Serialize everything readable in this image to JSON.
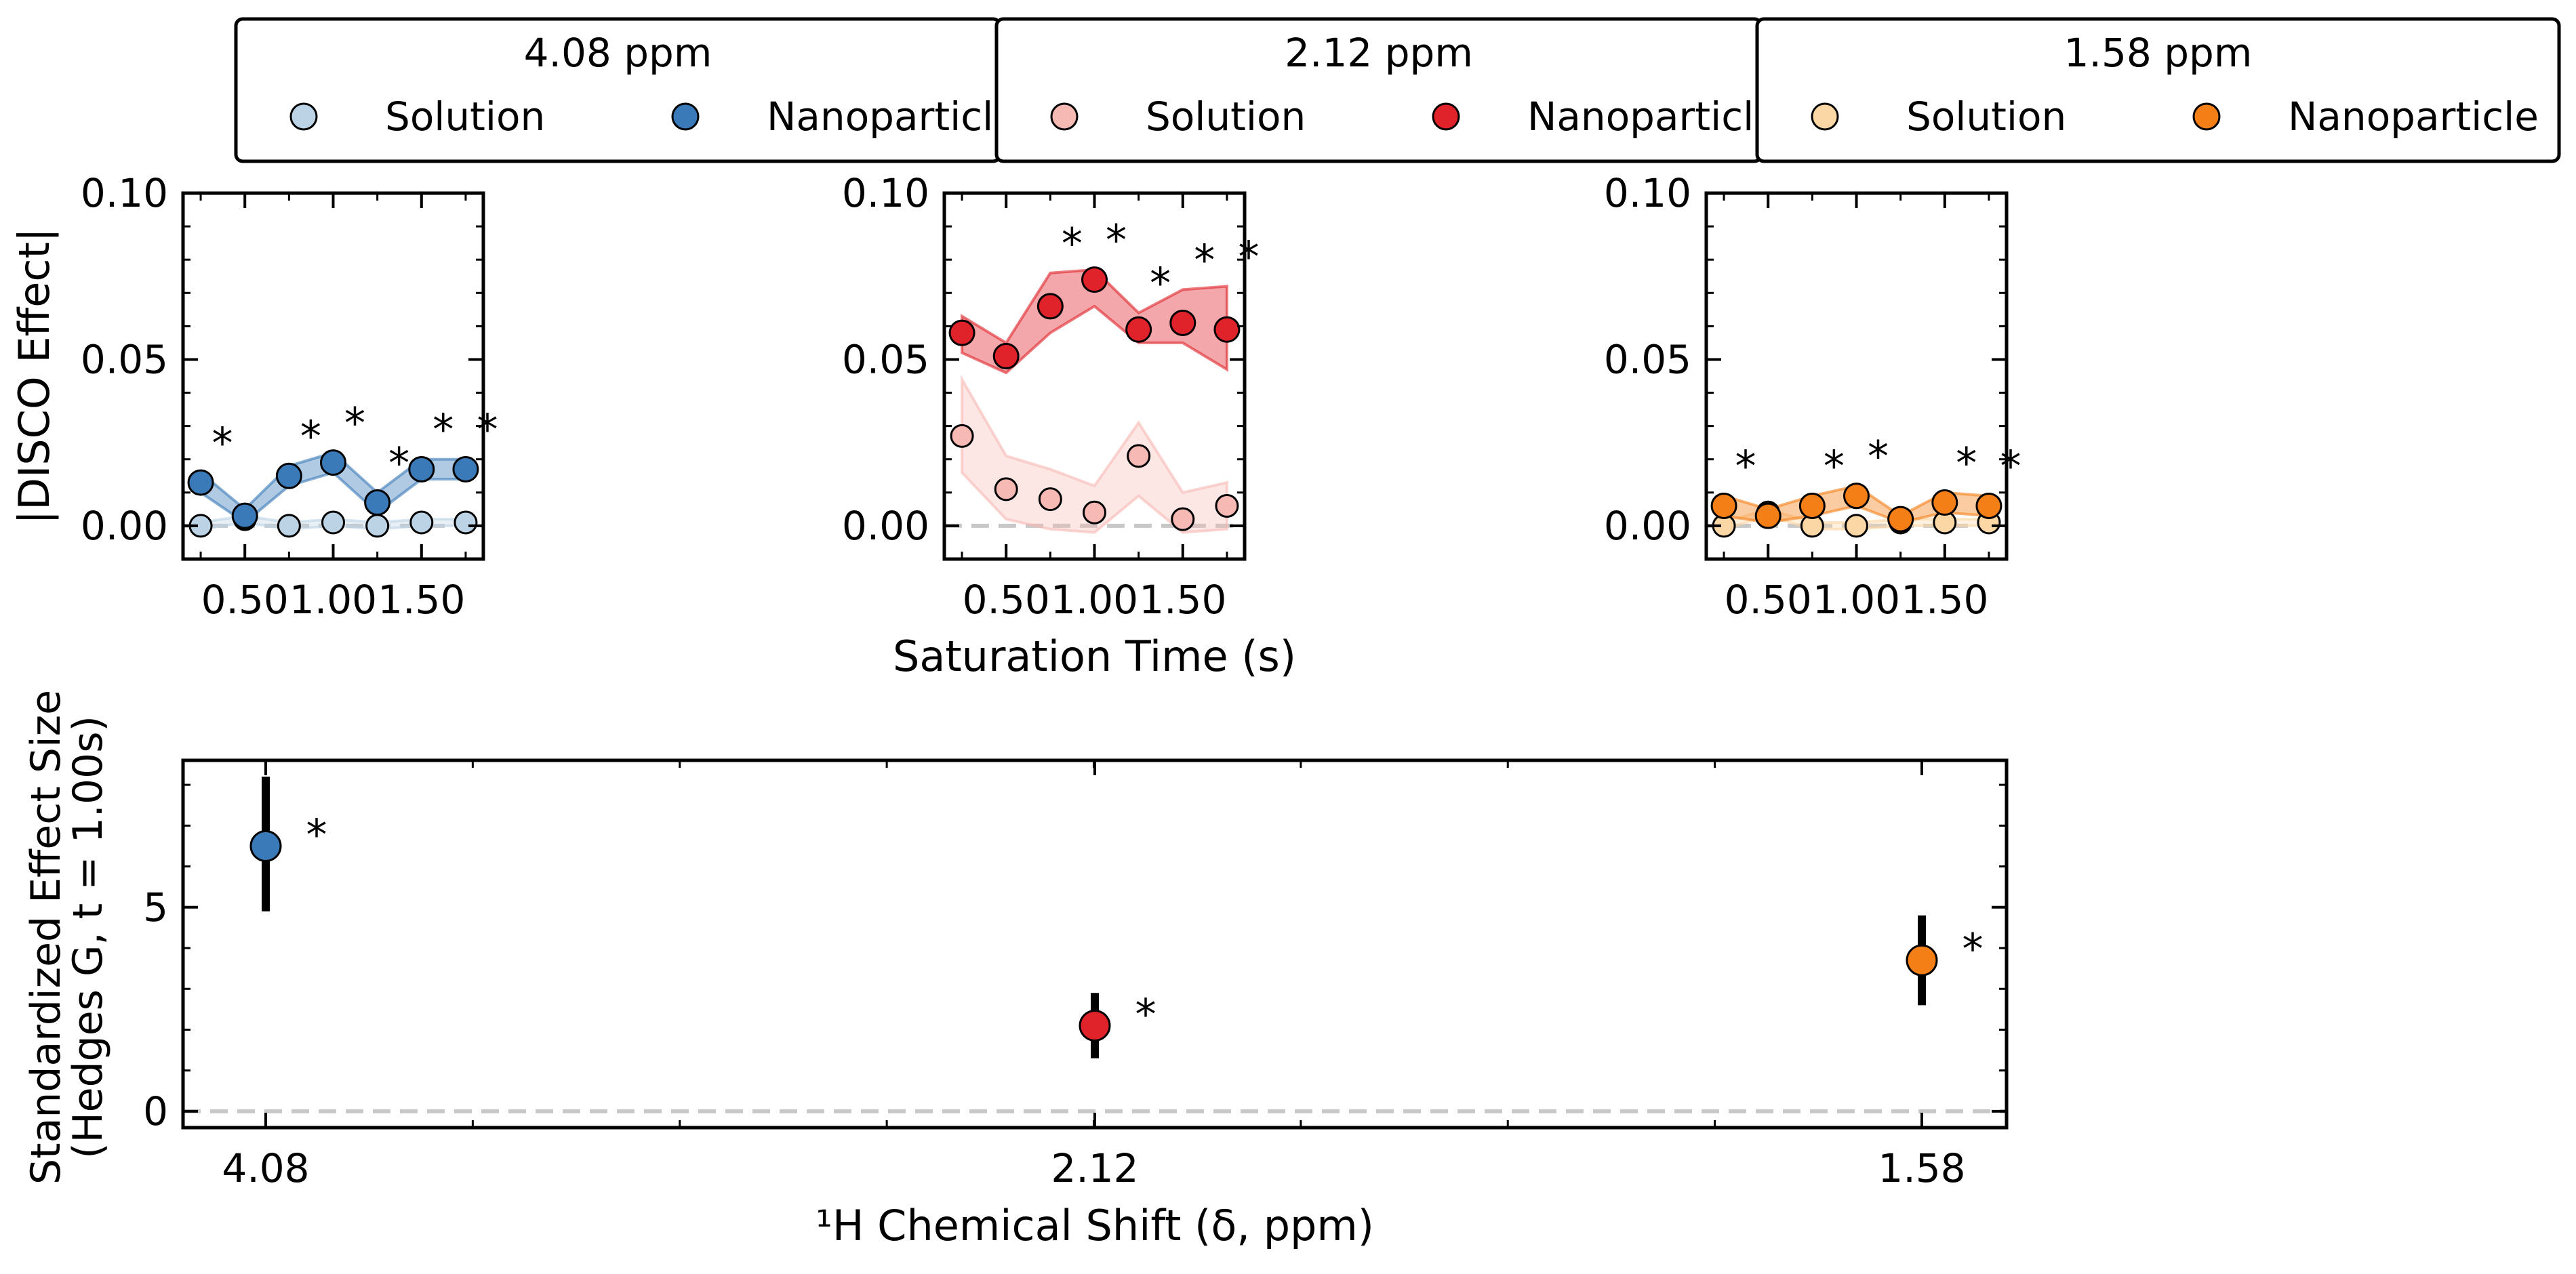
{
  "chart_data": [
    {
      "type": "scatter",
      "panel": "4.08 ppm",
      "legend": {
        "title": "4.08 ppm",
        "entries": [
          "Solution",
          "Nanoparticl"
        ],
        "placement": "top"
      },
      "ylabel": "|DISCO Effect|",
      "xlabel": "",
      "x_ticks": [
        "0.50",
        "1.00",
        "1.50"
      ],
      "y_ticks": [
        "0.00",
        "0.05",
        "0.10"
      ],
      "xlim": [
        0.15,
        1.85
      ],
      "ylim": [
        -0.01,
        0.1
      ],
      "reference_line": 0,
      "x": [
        0.25,
        0.5,
        0.75,
        1.0,
        1.25,
        1.5,
        1.75
      ],
      "series": [
        {
          "name": "Solution",
          "color": "#bcd3e6",
          "values": [
            0.0,
            0.002,
            0.0,
            0.001,
            0.0,
            0.001,
            0.001
          ],
          "band_low": [
            -0.001,
            0.001,
            -0.001,
            0.0,
            -0.001,
            0.0,
            0.0
          ],
          "band_high": [
            0.001,
            0.003,
            0.001,
            0.002,
            0.001,
            0.002,
            0.002
          ]
        },
        {
          "name": "Nanoparticl",
          "color": "#3a7ab8",
          "values": [
            0.013,
            0.003,
            0.015,
            0.019,
            0.007,
            0.017,
            0.017
          ],
          "band_low": [
            0.01,
            0.001,
            0.012,
            0.016,
            0.004,
            0.014,
            0.014
          ],
          "band_high": [
            0.016,
            0.005,
            0.018,
            0.022,
            0.01,
            0.02,
            0.02
          ]
        }
      ],
      "significance_marker": "*",
      "significant_x": [
        0.25,
        0.75,
        1.0,
        1.25,
        1.5,
        1.75
      ]
    },
    {
      "type": "scatter",
      "panel": "2.12 ppm",
      "legend": {
        "title": "2.12 ppm",
        "entries": [
          "Solution",
          "Nanoparticl"
        ],
        "placement": "top"
      },
      "ylabel": "",
      "xlabel": "Saturation Time (s)",
      "x_ticks": [
        "0.50",
        "1.00",
        "1.50"
      ],
      "y_ticks": [
        "0.00",
        "0.05",
        "0.10"
      ],
      "xlim": [
        0.15,
        1.85
      ],
      "ylim": [
        -0.01,
        0.1
      ],
      "reference_line": 0,
      "x": [
        0.25,
        0.5,
        0.75,
        1.0,
        1.25,
        1.5,
        1.75
      ],
      "series": [
        {
          "name": "Solution",
          "color": "#f7b9b4",
          "values": [
            0.027,
            0.011,
            0.008,
            0.004,
            0.021,
            0.002,
            0.006
          ],
          "band_low": [
            0.016,
            0.002,
            -0.001,
            -0.002,
            0.009,
            -0.002,
            -0.001
          ],
          "band_high": [
            0.044,
            0.021,
            0.017,
            0.012,
            0.031,
            0.01,
            0.013
          ]
        },
        {
          "name": "Nanoparticl",
          "color": "#e0232a",
          "values": [
            0.058,
            0.051,
            0.066,
            0.074,
            0.059,
            0.061,
            0.059
          ],
          "band_low": [
            0.052,
            0.046,
            0.058,
            0.066,
            0.055,
            0.055,
            0.047
          ],
          "band_high": [
            0.063,
            0.055,
            0.076,
            0.077,
            0.064,
            0.071,
            0.072
          ]
        }
      ],
      "significance_marker": "*",
      "significant_x": [
        0.75,
        1.0,
        1.25,
        1.5,
        1.75
      ]
    },
    {
      "type": "scatter",
      "panel": "1.58 ppm",
      "legend": {
        "title": "1.58 ppm",
        "entries": [
          "Solution",
          "Nanoparticle"
        ],
        "placement": "top"
      },
      "ylabel": "",
      "xlabel": "",
      "x_ticks": [
        "0.50",
        "1.00",
        "1.50"
      ],
      "y_ticks": [
        "0.00",
        "0.05",
        "0.10"
      ],
      "xlim": [
        0.15,
        1.85
      ],
      "ylim": [
        -0.01,
        0.1
      ],
      "reference_line": 0,
      "x": [
        0.25,
        0.5,
        0.75,
        1.0,
        1.25,
        1.5,
        1.75
      ],
      "series": [
        {
          "name": "Solution",
          "color": "#fbd7a5",
          "values": [
            0.0,
            0.004,
            0.0,
            0.0,
            0.001,
            0.001,
            0.001
          ],
          "band_low": [
            -0.001,
            0.003,
            -0.001,
            -0.001,
            0.0,
            0.0,
            0.0
          ],
          "band_high": [
            0.001,
            0.005,
            0.001,
            0.001,
            0.002,
            0.002,
            0.002
          ]
        },
        {
          "name": "Nanoparticle",
          "color": "#f57f17",
          "values": [
            0.006,
            0.003,
            0.006,
            0.009,
            0.002,
            0.007,
            0.006
          ],
          "band_low": [
            0.003,
            0.001,
            0.003,
            0.006,
            0.001,
            0.004,
            0.003
          ],
          "band_high": [
            0.009,
            0.005,
            0.009,
            0.012,
            0.003,
            0.01,
            0.009
          ]
        }
      ],
      "significance_marker": "*",
      "significant_x": [
        0.25,
        0.75,
        1.0,
        1.5,
        1.75
      ]
    },
    {
      "type": "scatter",
      "panel": "effect size",
      "xlabel": "¹H Chemical Shift (δ, ppm)",
      "ylabel_lines": [
        "Standardized Effect Size",
        "(Hedges G, t = 1.00s)"
      ],
      "categories": [
        "4.08",
        "2.12",
        "1.58"
      ],
      "y_ticks": [
        "0",
        "5"
      ],
      "ylim": [
        -0.4,
        8.6
      ],
      "reference_line": 0,
      "values": [
        6.5,
        2.1,
        3.7
      ],
      "ci_low": [
        4.9,
        1.3,
        2.6
      ],
      "ci_high": [
        8.2,
        2.9,
        4.8
      ],
      "colors": [
        "#3a7ab8",
        "#e0232a",
        "#f57f17"
      ],
      "significance_marker": "*"
    }
  ]
}
